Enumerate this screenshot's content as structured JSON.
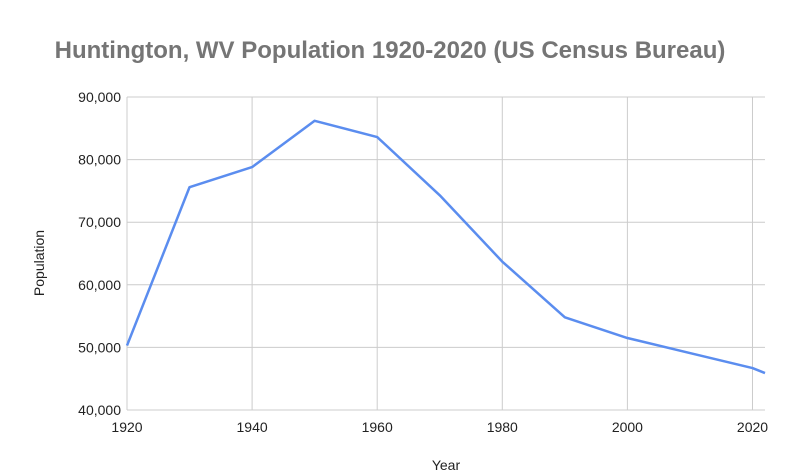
{
  "chart_data": {
    "type": "line",
    "title": "Huntington, WV Population 1920-2020 (US Census Bureau)",
    "x_label": "Year",
    "y_label": "Population",
    "x": [
      1920,
      1930,
      1940,
      1950,
      1960,
      1970,
      1980,
      1990,
      2000,
      2010,
      2020,
      2022
    ],
    "series": [
      {
        "name": "Population",
        "color": "#5b8def",
        "values": [
          50300,
          75600,
          78800,
          86200,
          83600,
          74300,
          63700,
          54800,
          51500,
          49100,
          46700,
          45900
        ]
      }
    ],
    "xlim": [
      1920,
      2022
    ],
    "xticks": [
      1920,
      1940,
      1960,
      1980,
      2000,
      2020
    ],
    "ylim": [
      40000,
      90000
    ],
    "yticks": [
      {
        "value": 40000,
        "label": "40,000"
      },
      {
        "value": 50000,
        "label": "50,000"
      },
      {
        "value": 60000,
        "label": "60,000"
      },
      {
        "value": 70000,
        "label": "70,000"
      },
      {
        "value": 80000,
        "label": "80,000"
      },
      {
        "value": 90000,
        "label": "90,000"
      }
    ],
    "grid": true
  }
}
